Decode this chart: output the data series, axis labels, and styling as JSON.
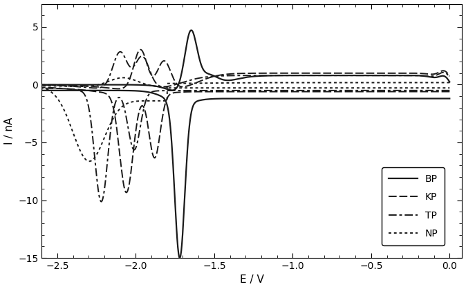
{
  "xlabel": "E / V",
  "ylabel": "I / nA",
  "xlim": [
    -2.6,
    0.08
  ],
  "ylim": [
    -15,
    7
  ],
  "xticks": [
    -2.5,
    -2.0,
    -1.5,
    -1.0,
    -0.5,
    0.0
  ],
  "yticks": [
    -15,
    -10,
    -5,
    0,
    5
  ],
  "background_color": "#ffffff",
  "legend_entries": [
    "BP",
    "KP",
    "TP",
    "NP"
  ],
  "line_color": "#1a1a1a",
  "lw_BP": 1.6,
  "lw_KP": 1.4,
  "lw_TP": 1.4,
  "lw_NP": 1.4
}
